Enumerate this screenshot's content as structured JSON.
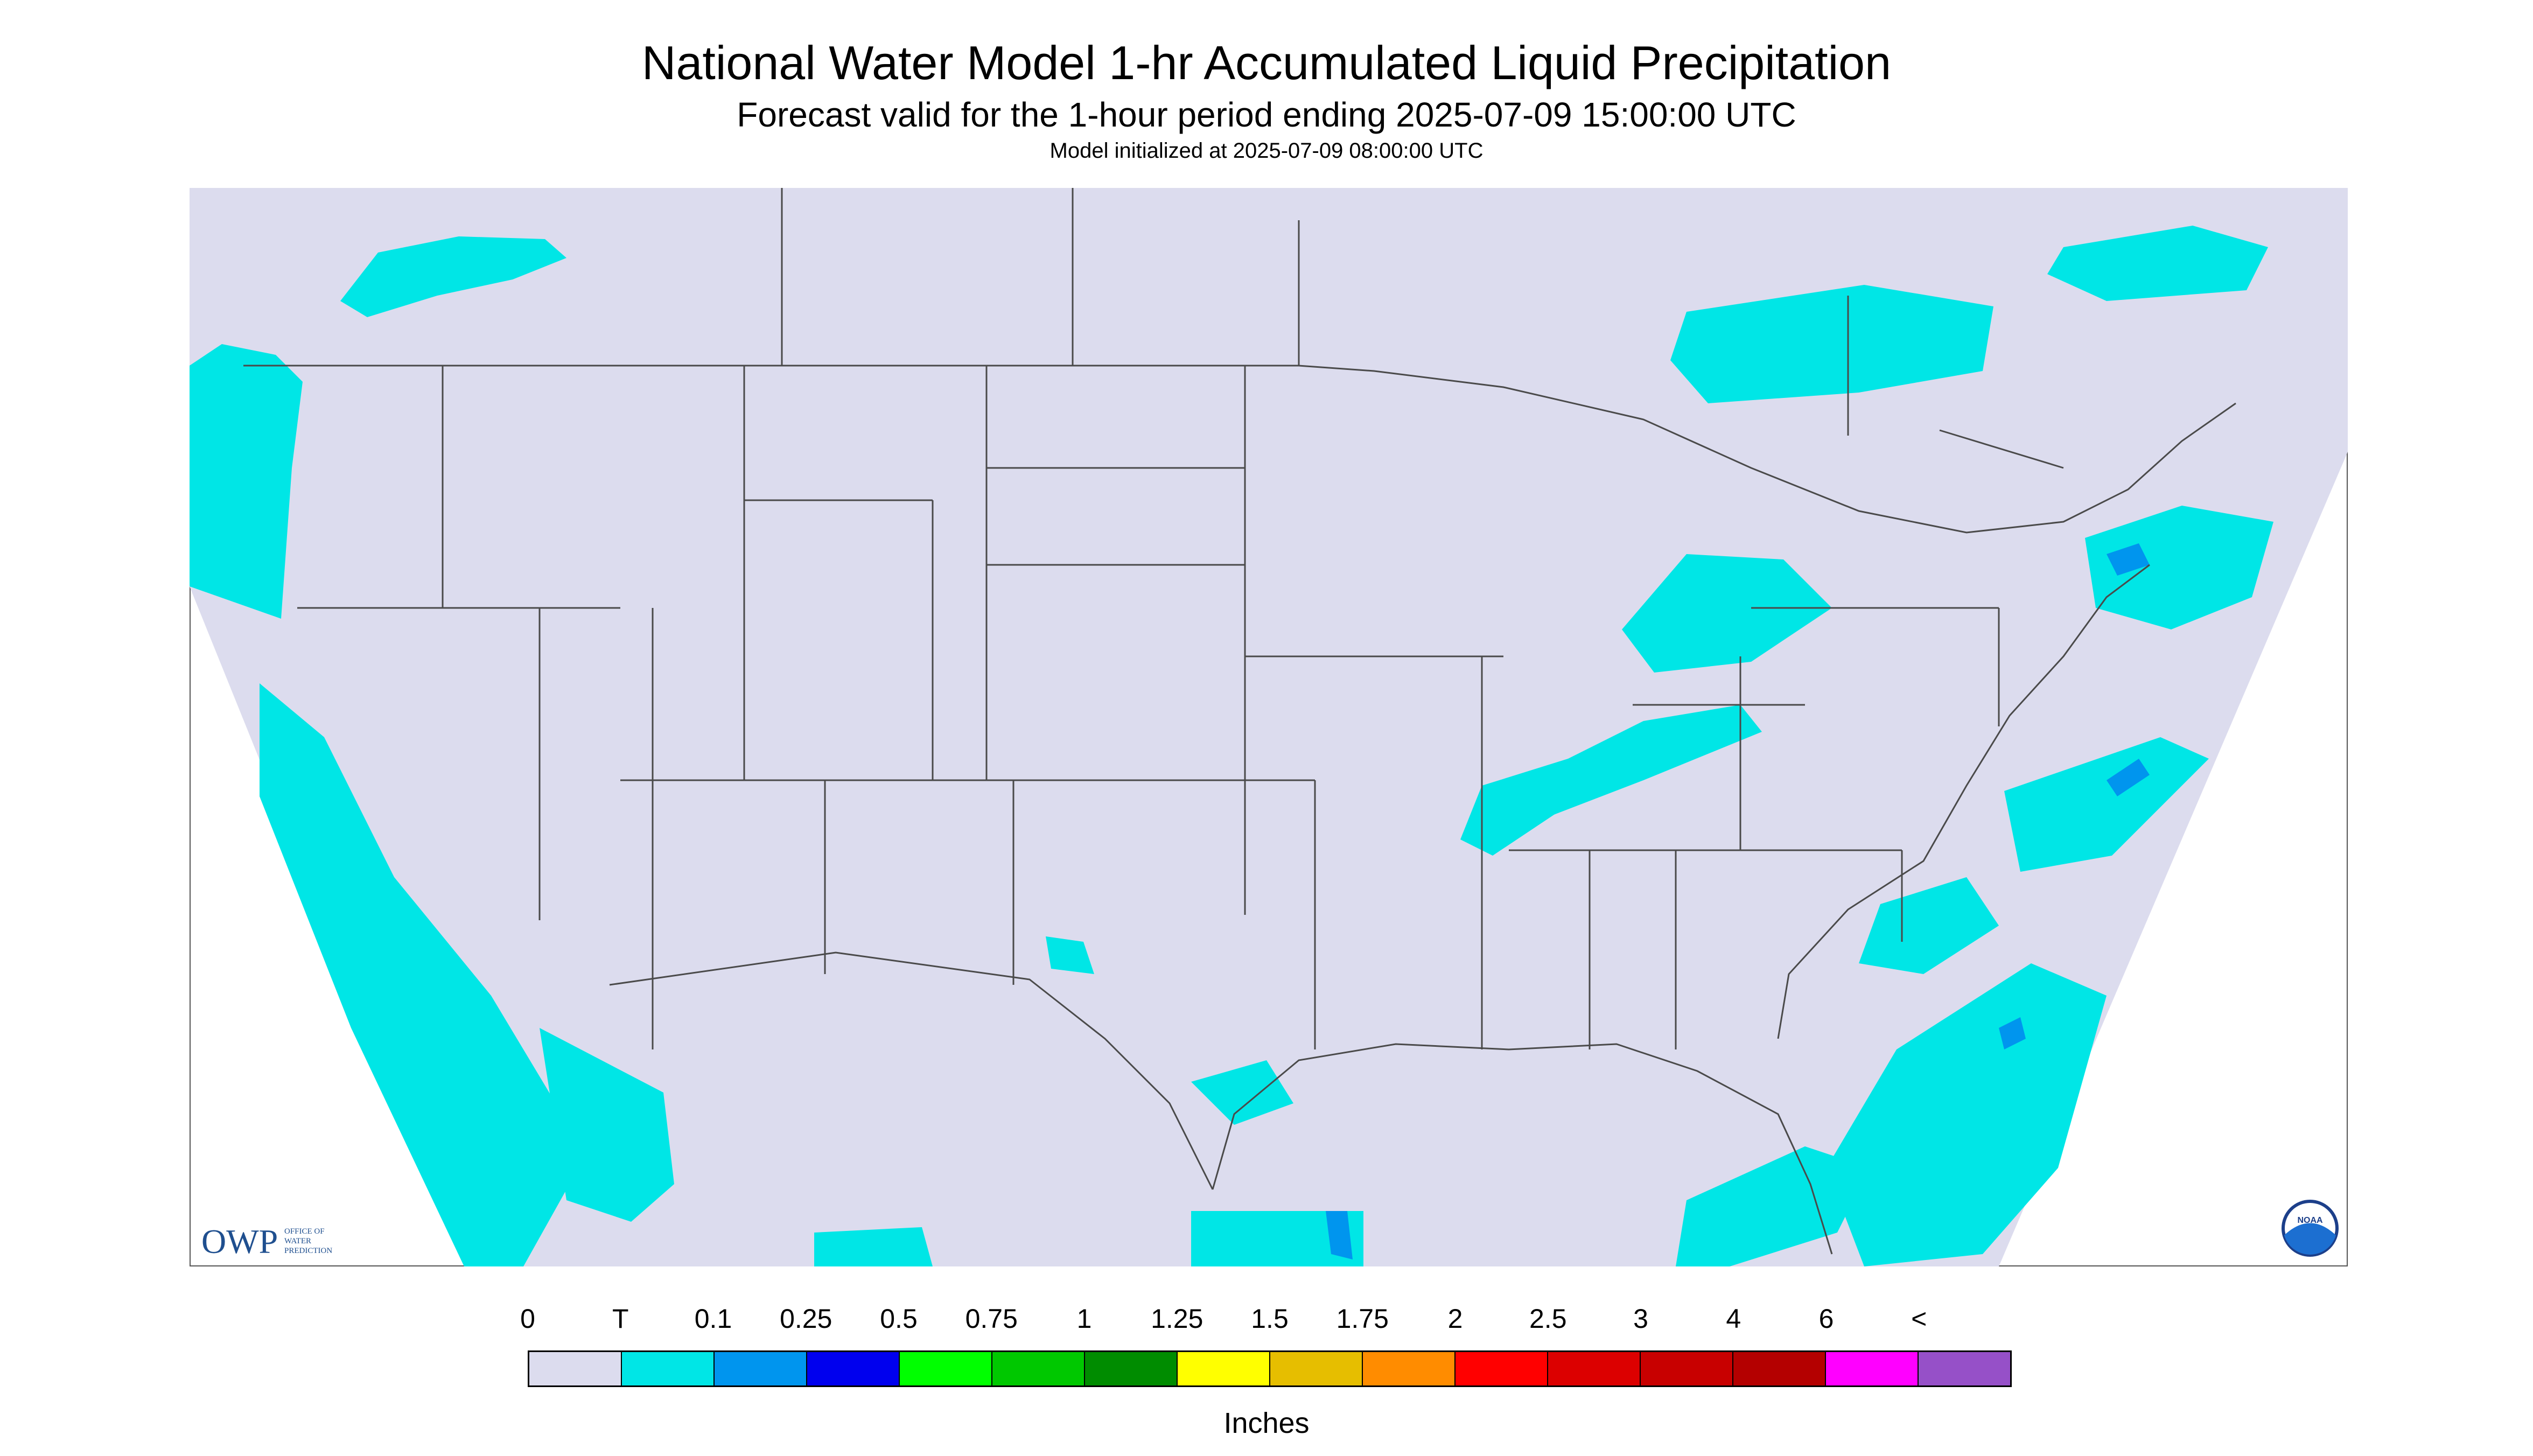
{
  "title": "National Water Model 1-hr Accumulated Liquid Precipitation",
  "subtitle": "Forecast valid for the 1-hour period ending 2025-07-09 15:00:00 UTC",
  "model_init": "Model initialized at 2025-07-09 08:00:00 UTC",
  "logos": {
    "owp_abbrev": "OWP",
    "owp_line1": "OFFICE OF",
    "owp_line2": "WATER",
    "owp_line3": "PREDICTION",
    "noaa": "NOAA"
  },
  "legend": {
    "labels": [
      "0",
      "T",
      "0.1",
      "0.25",
      "0.5",
      "0.75",
      "1",
      "1.25",
      "1.5",
      "1.75",
      "2",
      "2.5",
      "3",
      "4",
      "6",
      "<"
    ],
    "colors": [
      "#dcdcee",
      "#00e6e6",
      "#0095ee",
      "#0000ee",
      "#00ff00",
      "#00c800",
      "#008c00",
      "#ffff00",
      "#e6be00",
      "#ff8c00",
      "#ff0000",
      "#dc0000",
      "#c80000",
      "#b40000",
      "#ff00ff",
      "#9650c8"
    ],
    "units": "Inches"
  },
  "colors": {
    "map_background": "#dcdcee",
    "outside_domain": "#ffffff",
    "trace_precip": "#00e6e6",
    "light_precip": "#0095ee",
    "boundaries": "#4a4a4a"
  }
}
